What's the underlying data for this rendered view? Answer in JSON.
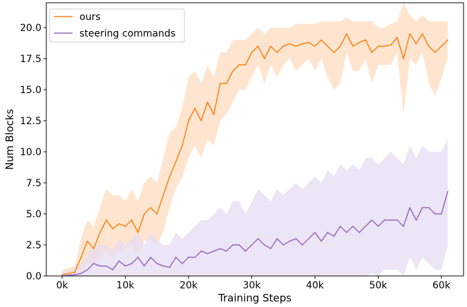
{
  "chart_data": {
    "type": "line",
    "xlabel": "Training Steps",
    "ylabel": "Num Blocks",
    "xlim": [
      -2500,
      63500
    ],
    "ylim": [
      0,
      22
    ],
    "xticks": [
      0,
      10000,
      20000,
      30000,
      40000,
      50000,
      60000
    ],
    "xtick_labels": [
      "0k",
      "10k",
      "20k",
      "30k",
      "40k",
      "50k",
      "60k"
    ],
    "yticks": [
      0,
      2.5,
      5,
      7.5,
      10,
      12.5,
      15,
      17.5,
      20
    ],
    "ytick_labels": [
      "0.0",
      "2.5",
      "5.0",
      "7.5",
      "10.0",
      "12.5",
      "15.0",
      "17.5",
      "20.0"
    ],
    "grid": false,
    "legend_position": "top-left",
    "series": [
      {
        "name": "ours",
        "color": "#ff7f0e",
        "band_color": "#ffdcbf",
        "x": [
          0,
          2000,
          3000,
          4000,
          5000,
          6000,
          7000,
          8000,
          9000,
          10000,
          11000,
          12000,
          13000,
          14000,
          15000,
          16000,
          17000,
          18000,
          19000,
          20000,
          21000,
          22000,
          23000,
          24000,
          25000,
          26000,
          27000,
          28000,
          29000,
          30000,
          31000,
          32000,
          33000,
          34000,
          35000,
          36000,
          37000,
          38000,
          39000,
          40000,
          41000,
          42000,
          43000,
          44000,
          45000,
          46000,
          47000,
          48000,
          49000,
          50000,
          51000,
          52000,
          53000,
          54000,
          55000,
          56000,
          57000,
          58000,
          59000,
          60000,
          61000
        ],
        "y": [
          0.1,
          0.3,
          1.5,
          2.8,
          2.2,
          3.5,
          4.5,
          3.8,
          4.2,
          4.0,
          4.5,
          3.5,
          5.0,
          5.5,
          5.0,
          6.5,
          8.0,
          9.2,
          10.5,
          12.5,
          13.5,
          12.5,
          14.0,
          13.0,
          15.5,
          15.5,
          16.5,
          17.0,
          17.0,
          18.0,
          18.5,
          17.5,
          18.5,
          18.0,
          18.5,
          18.7,
          18.5,
          18.7,
          18.8,
          18.5,
          19.0,
          18.5,
          18.0,
          18.5,
          19.5,
          18.5,
          18.8,
          19.0,
          18.0,
          18.5,
          18.5,
          18.6,
          19.2,
          17.5,
          19.5,
          18.7,
          19.5,
          18.5,
          18.0,
          18.5,
          19.0
        ],
        "lower": [
          0.0,
          0.0,
          0.3,
          1.0,
          0.8,
          1.5,
          2.0,
          1.5,
          2.0,
          2.0,
          2.5,
          1.5,
          2.8,
          3.0,
          2.5,
          3.5,
          5.5,
          7.0,
          8.0,
          9.5,
          10.5,
          9.5,
          11.0,
          10.5,
          12.5,
          13.0,
          14.0,
          15.0,
          15.0,
          16.0,
          17.0,
          15.5,
          17.0,
          16.0,
          17.0,
          17.5,
          16.5,
          17.0,
          17.5,
          16.5,
          17.5,
          16.0,
          15.0,
          15.5,
          18.0,
          16.5,
          16.5,
          17.5,
          15.5,
          17.0,
          17.0,
          17.0,
          18.0,
          13.0,
          17.5,
          17.0,
          18.0,
          15.5,
          14.5,
          16.0,
          17.5
        ],
        "upper": [
          0.5,
          0.8,
          3.0,
          4.5,
          4.0,
          5.5,
          7.0,
          6.5,
          6.5,
          6.0,
          7.0,
          6.0,
          7.5,
          8.0,
          7.5,
          9.5,
          11.5,
          12.0,
          13.5,
          16.0,
          16.5,
          15.5,
          17.0,
          16.0,
          18.0,
          18.0,
          19.0,
          19.0,
          19.0,
          19.5,
          20.0,
          19.5,
          20.0,
          20.0,
          20.0,
          20.0,
          20.3,
          20.3,
          20.3,
          20.3,
          20.5,
          20.5,
          20.5,
          20.5,
          20.8,
          20.5,
          20.5,
          20.5,
          20.5,
          20.0,
          20.0,
          20.3,
          20.5,
          22.0,
          21.0,
          20.5,
          21.0,
          20.5,
          20.5,
          20.5,
          20.5
        ]
      },
      {
        "name": "steering commands",
        "color": "#9467bd",
        "band_color": "#e6dcf1",
        "x": [
          0,
          2000,
          3000,
          4000,
          5000,
          6000,
          7000,
          8000,
          9000,
          10000,
          11000,
          12000,
          13000,
          14000,
          15000,
          16000,
          17000,
          18000,
          19000,
          20000,
          21000,
          22000,
          23000,
          24000,
          25000,
          26000,
          27000,
          28000,
          29000,
          30000,
          31000,
          32000,
          33000,
          34000,
          35000,
          36000,
          37000,
          38000,
          39000,
          40000,
          41000,
          42000,
          43000,
          44000,
          45000,
          46000,
          47000,
          48000,
          49000,
          50000,
          51000,
          52000,
          53000,
          54000,
          55000,
          56000,
          57000,
          58000,
          59000,
          60000,
          61000
        ],
        "y": [
          0.0,
          0.1,
          0.2,
          0.5,
          1.0,
          0.8,
          0.8,
          0.5,
          1.2,
          0.8,
          1.0,
          1.5,
          0.8,
          1.5,
          1.0,
          0.8,
          0.7,
          1.5,
          1.0,
          1.5,
          1.5,
          2.0,
          1.8,
          2.0,
          2.2,
          2.0,
          2.5,
          2.5,
          2.0,
          2.5,
          3.0,
          2.5,
          2.2,
          3.0,
          2.5,
          2.8,
          3.0,
          2.5,
          3.0,
          3.5,
          2.8,
          3.5,
          3.2,
          4.0,
          3.5,
          4.0,
          3.5,
          4.0,
          4.5,
          4.0,
          4.5,
          4.5,
          4.5,
          4.0,
          5.5,
          4.5,
          5.5,
          5.5,
          5.0,
          5.0,
          6.8
        ],
        "lower": [
          0.0,
          0.0,
          0.0,
          0.0,
          0.0,
          0.0,
          0.0,
          0.0,
          0.0,
          0.0,
          0.0,
          0.0,
          0.0,
          0.0,
          0.0,
          0.0,
          0.0,
          0.0,
          0.0,
          0.0,
          0.0,
          0.0,
          0.0,
          0.0,
          0.0,
          0.0,
          0.0,
          0.0,
          0.0,
          0.0,
          0.0,
          0.0,
          0.0,
          0.0,
          0.0,
          0.0,
          0.0,
          0.0,
          0.0,
          0.0,
          0.0,
          0.0,
          0.0,
          0.0,
          0.0,
          0.0,
          0.0,
          0.0,
          0.2,
          0.0,
          0.5,
          0.5,
          0.5,
          0.0,
          1.5,
          0.5,
          1.5,
          1.0,
          0.5,
          0.5,
          2.5
        ],
        "upper": [
          0.3,
          0.5,
          1.0,
          1.5,
          2.5,
          2.5,
          2.5,
          2.0,
          3.0,
          2.5,
          3.0,
          3.5,
          2.5,
          3.5,
          3.0,
          2.5,
          2.5,
          3.5,
          3.0,
          3.5,
          4.0,
          4.5,
          4.5,
          5.0,
          5.5,
          5.0,
          6.0,
          6.0,
          5.0,
          6.0,
          7.0,
          6.5,
          6.0,
          7.0,
          6.5,
          7.0,
          7.5,
          7.0,
          7.5,
          8.0,
          7.5,
          8.5,
          8.0,
          9.0,
          8.5,
          9.0,
          8.5,
          9.5,
          9.5,
          9.0,
          9.5,
          10.0,
          9.5,
          9.0,
          10.5,
          9.5,
          10.5,
          10.0,
          10.0,
          10.0,
          11.0
        ]
      }
    ]
  }
}
